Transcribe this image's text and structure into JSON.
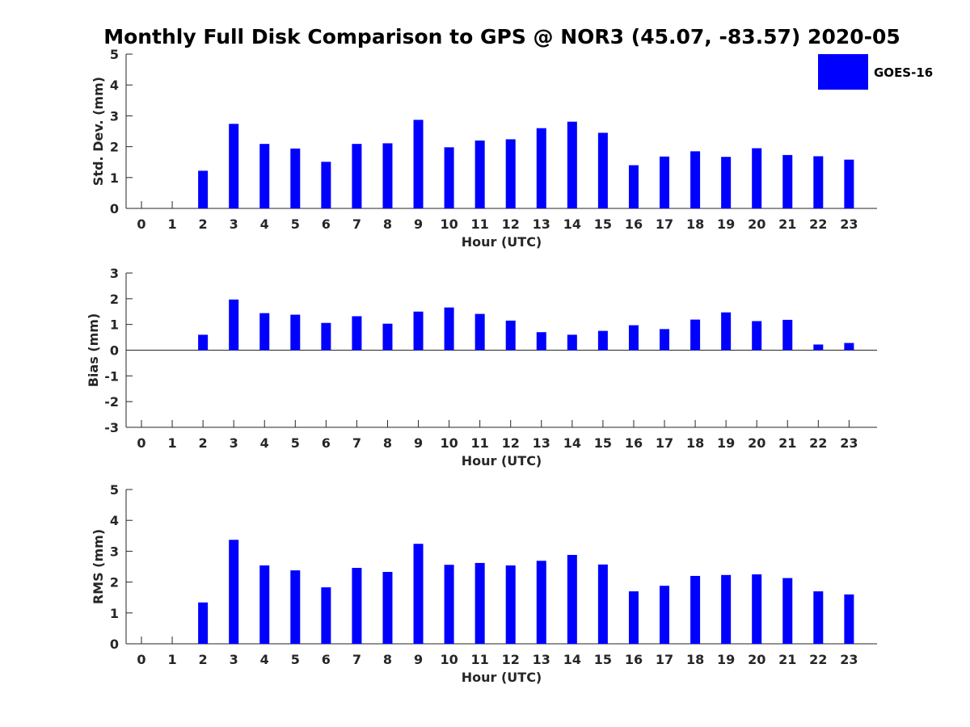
{
  "chart_data": {
    "title": "Monthly Full Disk Comparison to GPS @ NOR3 (45.07, -83.57) 2020-05",
    "legend": {
      "position": "top-right",
      "entries": [
        {
          "name": "GOES-16",
          "color": "#0000ff"
        }
      ]
    },
    "colors": {
      "bar": "#0000ff",
      "axis": "#262626"
    },
    "panels": [
      {
        "type": "bar",
        "ylabel": "Std. Dev. (mm)",
        "xlabel": "Hour (UTC)",
        "ylim": [
          0,
          5
        ],
        "yticks": [
          0,
          1,
          2,
          3,
          4,
          5
        ],
        "categories": [
          "0",
          "1",
          "2",
          "3",
          "4",
          "5",
          "6",
          "7",
          "8",
          "9",
          "10",
          "11",
          "12",
          "13",
          "14",
          "15",
          "16",
          "17",
          "18",
          "19",
          "20",
          "21",
          "22",
          "23"
        ],
        "series": [
          {
            "name": "GOES-16",
            "values": [
              null,
              null,
              1.22,
              2.74,
              2.09,
              1.94,
              1.51,
              2.09,
              2.11,
              2.87,
              1.98,
              2.2,
              2.24,
              2.6,
              2.81,
              2.45,
              1.4,
              1.68,
              1.85,
              1.67,
              1.95,
              1.73,
              1.69,
              1.58
            ]
          }
        ]
      },
      {
        "type": "bar",
        "ylabel": "Bias (mm)",
        "xlabel": "Hour (UTC)",
        "ylim": [
          -3,
          3
        ],
        "yticks": [
          -3,
          -2,
          -1,
          0,
          1,
          2,
          3
        ],
        "categories": [
          "0",
          "1",
          "2",
          "3",
          "4",
          "5",
          "6",
          "7",
          "8",
          "9",
          "10",
          "11",
          "12",
          "13",
          "14",
          "15",
          "16",
          "17",
          "18",
          "19",
          "20",
          "21",
          "22",
          "23"
        ],
        "series": [
          {
            "name": "GOES-16",
            "values": [
              null,
              null,
              0.6,
              1.97,
              1.44,
              1.38,
              1.06,
              1.32,
              1.03,
              1.5,
              1.66,
              1.41,
              1.15,
              0.7,
              0.6,
              0.75,
              0.97,
              0.82,
              1.19,
              1.47,
              1.13,
              1.18,
              0.22,
              0.28
            ]
          }
        ]
      },
      {
        "type": "bar",
        "ylabel": "RMS (mm)",
        "xlabel": "Hour (UTC)",
        "ylim": [
          0,
          5
        ],
        "yticks": [
          0,
          1,
          2,
          3,
          4,
          5
        ],
        "categories": [
          "0",
          "1",
          "2",
          "3",
          "4",
          "5",
          "6",
          "7",
          "8",
          "9",
          "10",
          "11",
          "12",
          "13",
          "14",
          "15",
          "16",
          "17",
          "18",
          "19",
          "20",
          "21",
          "22",
          "23"
        ],
        "series": [
          {
            "name": "GOES-16",
            "values": [
              null,
              null,
              1.34,
              3.37,
              2.54,
              2.38,
              1.83,
              2.46,
              2.33,
              3.24,
              2.56,
              2.62,
              2.54,
              2.69,
              2.88,
              2.57,
              1.7,
              1.88,
              2.2,
              2.23,
              2.25,
              2.13,
              1.7,
              1.6
            ]
          }
        ]
      }
    ]
  }
}
